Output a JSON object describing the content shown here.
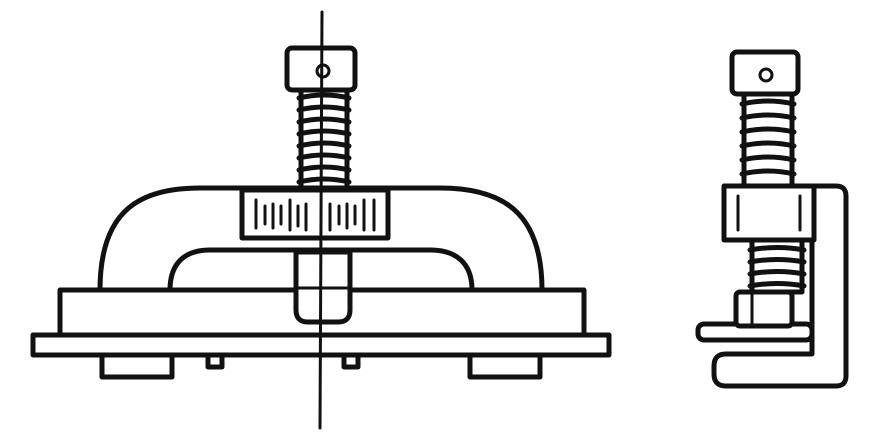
{
  "figure": {
    "views": [
      {
        "id": "front",
        "components": [
          "knob",
          "threaded-screw",
          "arch-frame",
          "graduated-dial",
          "base-plate",
          "mounting-plate",
          "feet"
        ]
      },
      {
        "id": "side",
        "components": [
          "knob",
          "threaded-screw",
          "c-frame",
          "graduated-dial",
          "lower-screw",
          "jaw"
        ]
      }
    ],
    "colors": {
      "ink": "#111111",
      "paper": "#ffffff"
    }
  }
}
